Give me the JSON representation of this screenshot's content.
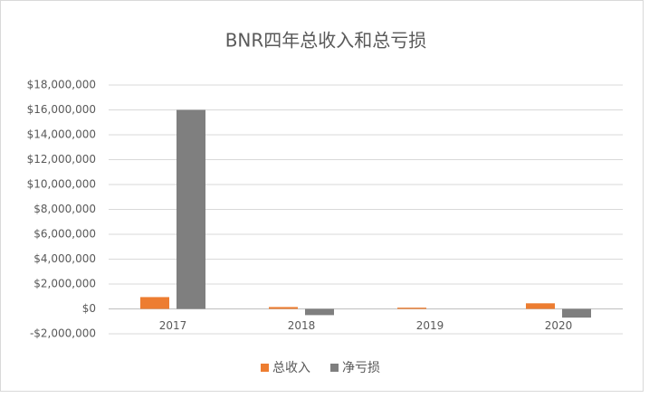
{
  "chart_data": {
    "type": "bar",
    "title": "BNR四年总收入和总亏损",
    "categories": [
      "2017",
      "2018",
      "2019",
      "2020"
    ],
    "series": [
      {
        "name": "总收入",
        "color": "#ed7d31",
        "values": [
          950000,
          150000,
          100000,
          450000
        ]
      },
      {
        "name": "净亏损",
        "color": "#7f7f7f",
        "values": [
          16000000,
          -500000,
          0,
          -700000
        ]
      }
    ],
    "ylim": [
      -2000000,
      18000000
    ],
    "yticks": [
      {
        "value": -2000000,
        "label": "-$2,000,000"
      },
      {
        "value": 0,
        "label": "$0"
      },
      {
        "value": 2000000,
        "label": "$2,000,000"
      },
      {
        "value": 4000000,
        "label": "$4,000,000"
      },
      {
        "value": 6000000,
        "label": "$6,000,000"
      },
      {
        "value": 8000000,
        "label": "$8,000,000"
      },
      {
        "value": 10000000,
        "label": "$10,000,000"
      },
      {
        "value": 12000000,
        "label": "$12,000,000"
      },
      {
        "value": 14000000,
        "label": "$14,000,000"
      },
      {
        "value": 16000000,
        "label": "$16,000,000"
      },
      {
        "value": 18000000,
        "label": "$18,000,000"
      }
    ],
    "grid": true,
    "legend": "bottom"
  }
}
